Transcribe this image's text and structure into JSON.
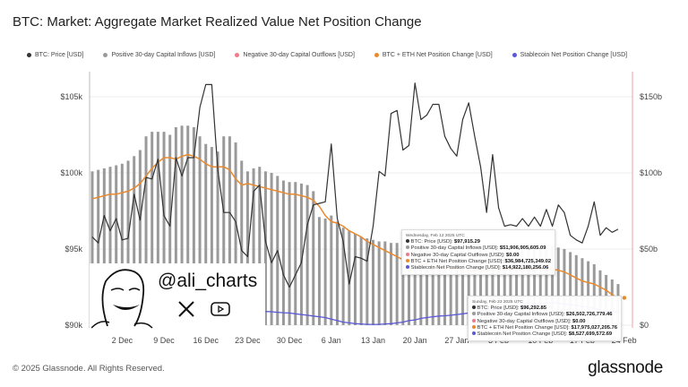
{
  "title": "BTC: Market: Aggregate Market Realized Value Net Position Change",
  "legend": [
    {
      "label": "BTC: Price [USD]",
      "color": "#333333"
    },
    {
      "label": "Positive 30-day Capital Inflows [USD]",
      "color": "#9a9a9a"
    },
    {
      "label": "Negative 30-day Capital Outflows [USD]",
      "color": "#f07b8c"
    },
    {
      "label": "BTC + ETH Net Position Change [USD]",
      "color": "#ea8a2f"
    },
    {
      "label": "Stablecoin Net Position Change [USD]",
      "color": "#5a58d6"
    }
  ],
  "watermark": {
    "handle": "@ali_charts"
  },
  "tooltips": [
    {
      "date": "Wednesday, Feb 12 2025 UTC",
      "rows": [
        {
          "label": "BTC: Price [USD]:",
          "value": "$97,915.29",
          "color": "#333333"
        },
        {
          "label": "Positive 30-day Capital Inflows [USD]:",
          "value": "$51,906,905,605.09",
          "color": "#9a9a9a"
        },
        {
          "label": "Negative 30-day Capital Outflows [USD]:",
          "value": "$0.00",
          "color": "#f07b8c"
        },
        {
          "label": "BTC + ETH Net Position Change [USD]:",
          "value": "$36,984,725,349.02",
          "color": "#ea8a2f"
        },
        {
          "label": "Stablecoin Net Position Change [USD]:",
          "value": "$14,922,180,256.06",
          "color": "#5a58d6"
        }
      ]
    },
    {
      "date": "Sunday, Feb 23 2025 UTC",
      "rows": [
        {
          "label": "BTC: Price [USD]:",
          "value": "$96,292.85",
          "color": "#333333"
        },
        {
          "label": "Positive 30-day Capital Inflows [USD]:",
          "value": "$26,502,726,779.46",
          "color": "#9a9a9a"
        },
        {
          "label": "Negative 30-day Capital Outflows [USD]:",
          "value": "$0.00",
          "color": "#f07b8c"
        },
        {
          "label": "BTC + ETH Net Position Change [USD]:",
          "value": "$17,975,027,205.76",
          "color": "#ea8a2f"
        },
        {
          "label": "Stablecoin Net Position Change [USD]:",
          "value": "$8,527,699,572.69",
          "color": "#5a58d6"
        }
      ]
    }
  ],
  "footer": {
    "copyright": "© 2025 Glassnode. All Rights Reserved.",
    "logo": "glassnode"
  },
  "chart_data": {
    "type": "bar+line",
    "x_start": "2024-11-27",
    "x_tick_labels": [
      "2 Dec",
      "9 Dec",
      "16 Dec",
      "23 Dec",
      "30 Dec",
      "6 Jan",
      "13 Jan",
      "20 Jan",
      "27 Jan",
      "3 Feb",
      "10 Feb",
      "17 Feb",
      "24 Feb"
    ],
    "x_tick_dates": [
      "2024-12-02",
      "2024-12-09",
      "2024-12-16",
      "2024-12-23",
      "2024-12-30",
      "2025-01-06",
      "2025-01-13",
      "2025-01-20",
      "2025-01-27",
      "2025-02-03",
      "2025-02-10",
      "2025-02-17",
      "2025-02-24"
    ],
    "y_left": {
      "ticks": [
        "$90k",
        "$95k",
        "$100k",
        "$105k"
      ],
      "range": [
        90000,
        108000
      ]
    },
    "y_right": {
      "ticks": [
        "$0",
        "$50b",
        "$100b",
        "$150b"
      ],
      "range": [
        0,
        150
      ]
    },
    "grid": true,
    "legend_position": "top",
    "series": [
      {
        "name": "BTC: Price [USD]",
        "type": "line",
        "axis": "left",
        "values": [
          95800,
          95400,
          97200,
          96200,
          97000,
          95600,
          95700,
          98600,
          96900,
          99700,
          99600,
          100900,
          97200,
          96500,
          101000,
          99800,
          101000,
          101000,
          104300,
          105800,
          105800,
          100200,
          97400,
          97400,
          96800,
          94900,
          94500,
          98800,
          99200,
          95500,
          94100,
          94900,
          93300,
          92500,
          93300,
          94100,
          96600,
          97900,
          98000,
          98100,
          101900,
          97000,
          95500,
          92700,
          94500,
          94400,
          94200,
          96500,
          100100,
          99800,
          103900,
          104100,
          101500,
          101800,
          105900,
          103500,
          103800,
          104500,
          104500,
          102400,
          101600,
          101100,
          103500,
          104600,
          102400,
          100400,
          97400,
          101200,
          97700,
          96500,
          96600,
          96500,
          97000,
          96500,
          97100,
          96500,
          97600,
          96500,
          97900,
          97400,
          95900,
          95600,
          95400,
          96500,
          98100,
          95900,
          96400,
          96100,
          96300
        ]
      },
      {
        "name": "Positive 30-day Capital Inflows [USD]",
        "type": "bar",
        "axis": "right",
        "unit": "billion USD",
        "values": [
          101,
          102,
          103,
          104,
          105,
          106,
          108,
          111,
          115,
          124,
          127,
          127,
          127,
          125,
          130,
          131,
          131,
          130,
          124,
          119,
          117,
          114,
          124,
          124,
          120,
          108,
          101,
          103,
          104,
          101,
          100,
          98,
          95,
          94,
          94,
          93,
          92,
          88,
          71,
          70,
          72,
          68,
          64,
          62,
          60,
          58,
          57,
          56,
          55,
          55,
          54,
          54,
          53,
          53,
          52,
          52,
          52,
          52,
          52,
          52,
          52,
          52,
          52,
          52,
          52,
          52,
          52,
          52,
          52,
          52,
          52,
          52,
          52,
          52,
          52,
          52,
          52,
          52,
          51,
          50,
          48,
          46,
          44,
          42,
          40,
          36,
          33,
          30,
          27
        ]
      },
      {
        "name": "Negative 30-day Capital Outflows [USD]",
        "type": "bar",
        "axis": "right",
        "unit": "billion USD",
        "values": []
      },
      {
        "name": "BTC + ETH Net Position Change [USD]",
        "type": "line",
        "axis": "right",
        "unit": "billion USD",
        "values": [
          83,
          84,
          85,
          86,
          86,
          87,
          88,
          90,
          93,
          98,
          103,
          107,
          110,
          110,
          109,
          111,
          112,
          111,
          109,
          106,
          104,
          104,
          104,
          102,
          96,
          92,
          93,
          92,
          91,
          90,
          89,
          88,
          87,
          86,
          86,
          85,
          84,
          82,
          78,
          72,
          68,
          67,
          65,
          62,
          60,
          58,
          55,
          53,
          51,
          49,
          47,
          45,
          43,
          42,
          41,
          40,
          39,
          38,
          38,
          37,
          37,
          37,
          36,
          36,
          36,
          36,
          36,
          36,
          37,
          37,
          37,
          37,
          37,
          37,
          37,
          37,
          37,
          37,
          36,
          35,
          33,
          31,
          29,
          28,
          27,
          25,
          23,
          20,
          18
        ]
      },
      {
        "name": "Stablecoin Net Position Change [USD]",
        "type": "line",
        "axis": "right",
        "unit": "billion USD",
        "values": [
          null,
          null,
          null,
          null,
          null,
          null,
          null,
          null,
          null,
          null,
          null,
          null,
          null,
          null,
          null,
          null,
          null,
          null,
          null,
          null,
          null,
          null,
          null,
          null,
          null,
          null,
          null,
          null,
          null,
          9,
          8.8,
          8.5,
          8.2,
          8,
          7.5,
          7,
          6.5,
          6,
          5.5,
          5,
          4,
          3,
          2,
          1.5,
          1,
          0.8,
          0.5,
          0.5,
          0.5,
          0.8,
          1,
          1.5,
          2,
          3,
          3.5,
          4.5,
          5,
          5.5,
          6,
          6.2,
          6.5,
          7,
          7.5,
          8,
          8.5,
          9,
          9.5,
          10,
          10.5,
          11,
          11.5,
          12,
          12.5,
          13,
          13.5,
          14,
          14.5,
          14.9,
          14.5,
          14,
          13.5,
          13,
          12.5,
          12,
          11,
          10,
          9.5,
          9,
          8.5
        ]
      }
    ]
  }
}
